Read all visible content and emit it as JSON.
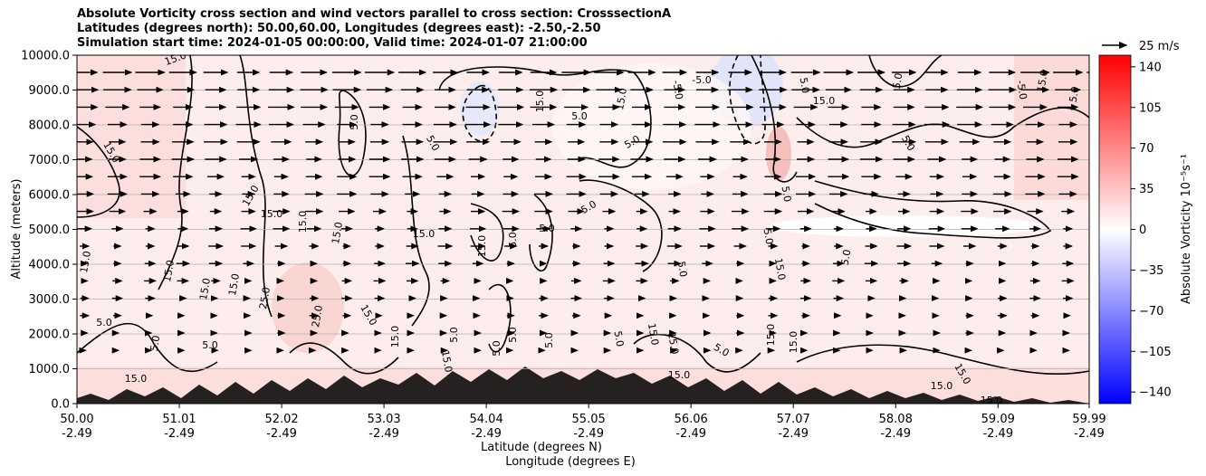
{
  "chart_data": {
    "type": "heatmap",
    "title_lines": [
      "Absolute Vorticity cross section and wind vectors parallel to cross section: CrosssectionA",
      "Latitudes (degrees north): 50.00,60.00, Longitudes (degrees east): -2.50,-2.50",
      "Simulation start time: 2024-01-05 00:00:00, Valid time: 2024-01-07 21:00:00"
    ],
    "ylabel": "Altitude (meters)",
    "xlabel_lines": [
      "Latitude (degrees N)",
      "Longitude (degrees E)"
    ],
    "y_ticks": [
      0,
      1000,
      2000,
      3000,
      4000,
      5000,
      6000,
      7000,
      8000,
      9000,
      10000
    ],
    "y_tick_labels": [
      "0.0",
      "1000.0",
      "2000.0",
      "3000.0",
      "4000.0",
      "5000.0",
      "6000.0",
      "7000.0",
      "8000.0",
      "9000.0",
      "10000.0"
    ],
    "ylim": [
      0,
      10000
    ],
    "x_ticks": [
      50.0,
      51.01,
      52.02,
      53.03,
      54.04,
      55.05,
      56.06,
      57.07,
      58.08,
      59.09,
      59.99
    ],
    "x_tick_labels_lat": [
      "50.00",
      "51.01",
      "52.02",
      "53.03",
      "54.04",
      "55.05",
      "56.06",
      "57.07",
      "58.08",
      "59.09",
      "59.99"
    ],
    "x_tick_labels_lon": [
      "-2.49",
      "-2.49",
      "-2.49",
      "-2.49",
      "-2.49",
      "-2.49",
      "-2.49",
      "-2.49",
      "-2.49",
      "-2.49",
      "-2.49"
    ],
    "xlim": [
      50.0,
      59.99
    ],
    "grid": "horizontal",
    "colorbar": {
      "label": "Absolute Vorticity 10⁻⁵s⁻¹",
      "range": [
        -150,
        150
      ],
      "ticks": [
        140,
        105,
        70,
        35,
        0,
        -35,
        -70,
        -105,
        -140
      ],
      "tick_labels": [
        "140",
        "105",
        "70",
        "35",
        "0",
        "−35",
        "−70",
        "−105",
        "−140"
      ],
      "colormap": "bwr"
    },
    "vector_key": {
      "label": "25 m/s",
      "speed": 25
    },
    "contour_labels": [
      "15.0",
      "5.0",
      "-5.0",
      "25.0"
    ],
    "contour_levels": [
      -5,
      5,
      15,
      25
    ]
  },
  "colors": {
    "positive": "#ff0000",
    "negative": "#0000ff",
    "neutral": "#ffffff",
    "contour": "#000000",
    "grid": "#b0b0b0"
  }
}
